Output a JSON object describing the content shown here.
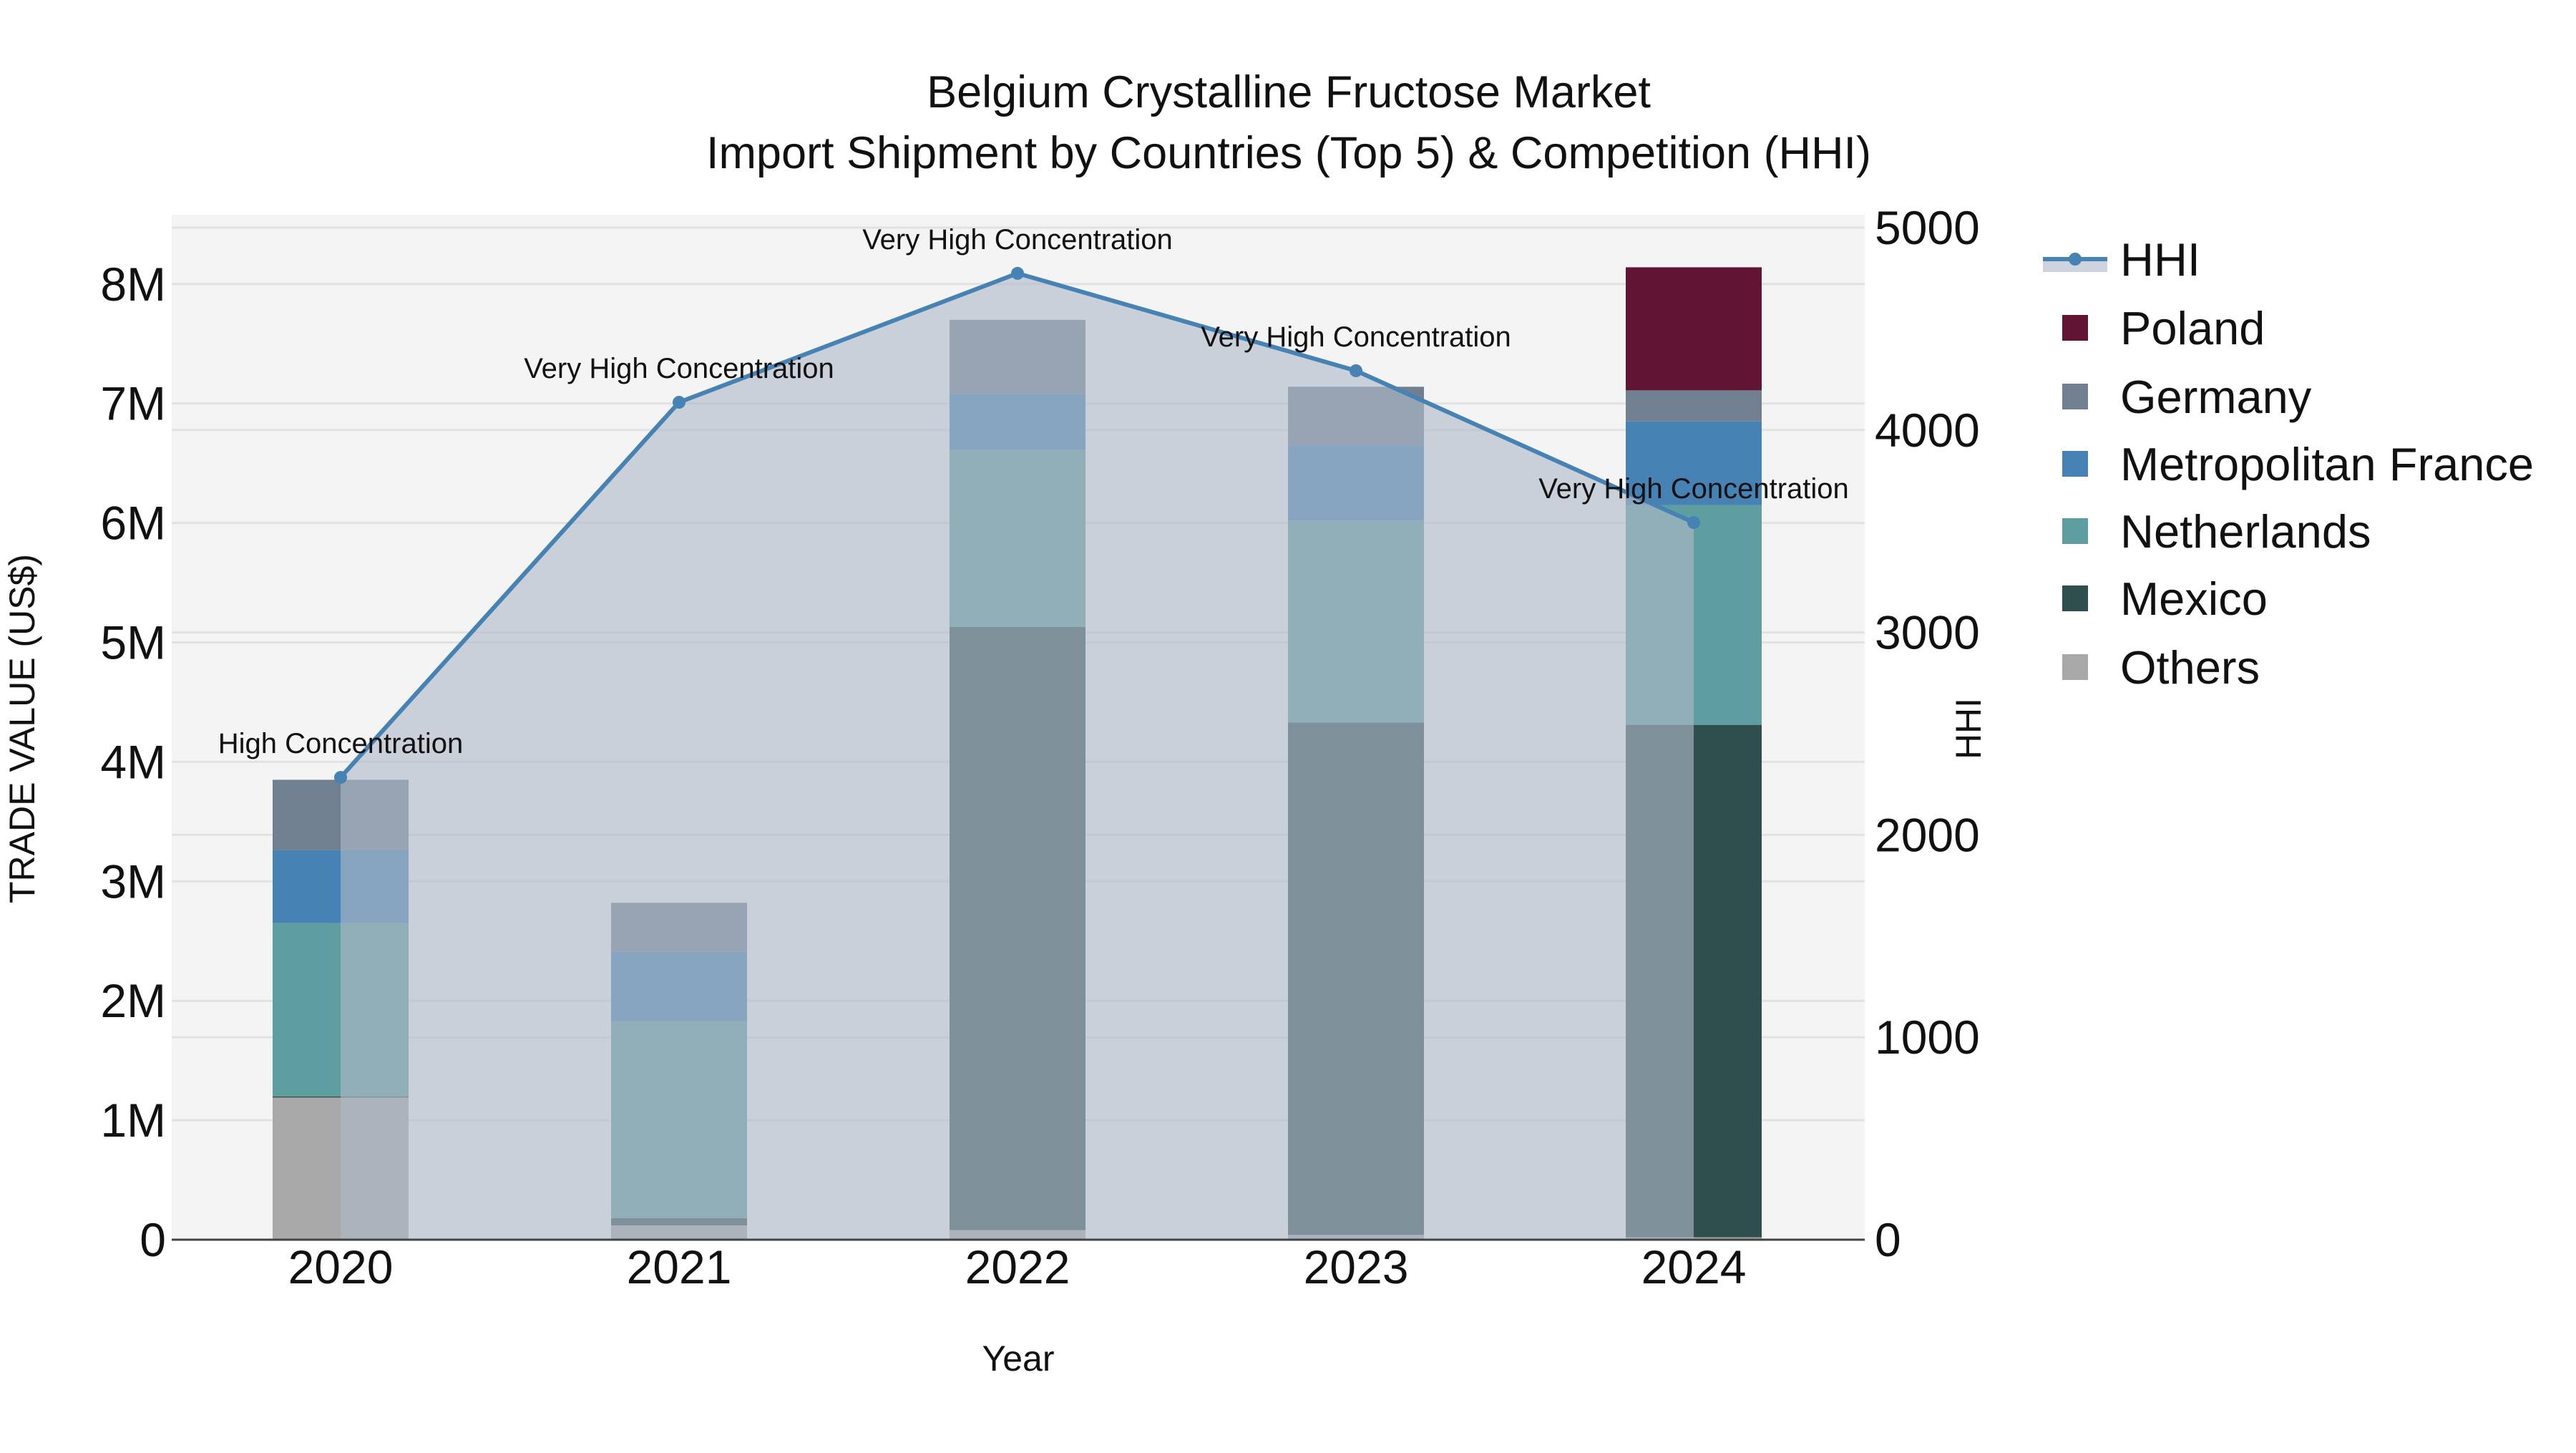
{
  "title": {
    "line1": "Belgium Crystalline Fructose Market",
    "line2": "Import Shipment by Countries (Top 5) & Competition (HHI)"
  },
  "axes": {
    "x_title": "Year",
    "y_left_title": "TRADE VALUE (US$)",
    "y_right_title": "HHI",
    "y_left_ticks": [
      "0",
      "1M",
      "2M",
      "3M",
      "4M",
      "5M",
      "6M",
      "7M",
      "8M"
    ],
    "y_right_ticks": [
      "0",
      "1000",
      "2000",
      "3000",
      "4000",
      "5000"
    ]
  },
  "legend": {
    "items": [
      {
        "label": "HHI",
        "type": "line",
        "color": "#4682b4"
      },
      {
        "label": "Poland",
        "type": "bar",
        "color": "#611434"
      },
      {
        "label": "Germany",
        "type": "bar",
        "color": "#708090"
      },
      {
        "label": "Metropolitan France",
        "type": "bar",
        "color": "#4682b4"
      },
      {
        "label": "Netherlands",
        "type": "bar",
        "color": "#5f9ea0"
      },
      {
        "label": "Mexico",
        "type": "bar",
        "color": "#2f4f4f"
      },
      {
        "label": "Others",
        "type": "bar",
        "color": "#a9a9a9"
      }
    ]
  },
  "colors": {
    "plot_bg": "#f4f4f4",
    "grid": "#e2e2e2",
    "hhi_line": "#4682b4",
    "hhi_fill": "rgba(176,186,200,0.62)"
  },
  "chart_data": {
    "type": "bar",
    "stacked": true,
    "title": "Belgium Crystalline Fructose Market — Import Shipment by Countries (Top 5) & Competition (HHI)",
    "xlabel": "Year",
    "ylabel": "TRADE VALUE (US$)",
    "y2label": "HHI",
    "categories": [
      "2020",
      "2021",
      "2022",
      "2023",
      "2024"
    ],
    "ylim": [
      0,
      8500000
    ],
    "y2lim": [
      0,
      5000
    ],
    "grid": true,
    "legend_position": "right",
    "series": [
      {
        "name": "Others",
        "color": "#a9a9a9",
        "values": [
          1190000,
          120000,
          80000,
          40000,
          20000
        ]
      },
      {
        "name": "Mexico",
        "color": "#2f4f4f",
        "values": [
          10000,
          60000,
          5050000,
          4290000,
          4290000
        ]
      },
      {
        "name": "Netherlands",
        "color": "#5f9ea0",
        "values": [
          1450000,
          1650000,
          1480000,
          1690000,
          1840000
        ]
      },
      {
        "name": "Metropolitan France",
        "color": "#4682b4",
        "values": [
          610000,
          580000,
          470000,
          630000,
          700000
        ]
      },
      {
        "name": "Germany",
        "color": "#708090",
        "values": [
          590000,
          410000,
          620000,
          490000,
          260000
        ]
      },
      {
        "name": "Poland",
        "color": "#611434",
        "values": [
          0,
          0,
          0,
          0,
          1030000
        ]
      }
    ],
    "line_series": {
      "name": "HHI",
      "axis": "right",
      "type": "line+fill",
      "color": "#4682b4",
      "values": [
        2284,
        4137,
        4774,
        4293,
        3543
      ],
      "annotations": [
        "High Concentration",
        "Very High Concentration",
        "Very High Concentration",
        "Very High Concentration",
        "Very High Concentration"
      ]
    }
  }
}
